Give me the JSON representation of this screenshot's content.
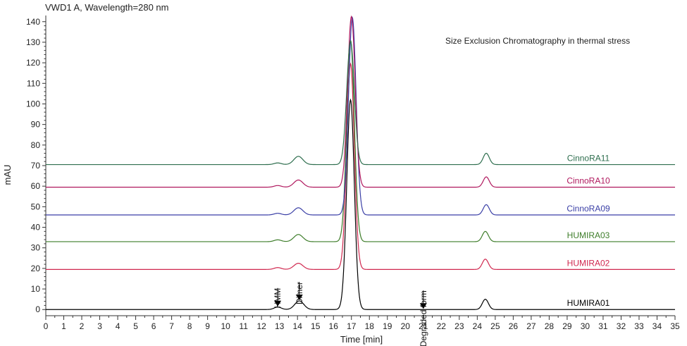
{
  "chart_data": {
    "type": "line",
    "header": "VWD1 A, Wavelength=280 nm",
    "title": "Size Exclusion Chromatography in thermal stress",
    "xlabel": "Time [min]",
    "ylabel": "mAU",
    "xlim": [
      0,
      35
    ],
    "ylim": [
      -3,
      143
    ],
    "xticks": [
      0,
      1,
      2,
      3,
      4,
      5,
      6,
      7,
      8,
      9,
      10,
      11,
      12,
      13,
      14,
      15,
      16,
      17,
      18,
      19,
      20,
      21,
      22,
      23,
      24,
      25,
      26,
      27,
      28,
      29,
      30,
      31,
      32,
      33,
      34,
      35
    ],
    "yticks": [
      0,
      10,
      20,
      30,
      40,
      50,
      60,
      70,
      80,
      90,
      100,
      110,
      120,
      130,
      140
    ],
    "grid": false,
    "legend": "inline-right",
    "series": [
      {
        "name": "HUMIRA01",
        "color": "#000000",
        "baseline": 0,
        "peaks": [
          {
            "x": 12.9,
            "h": 1.2,
            "w": 0.2
          },
          {
            "x": 14.1,
            "h": 4.2,
            "w": 0.25
          },
          {
            "x": 16.95,
            "h": 102,
            "w": 0.21
          },
          {
            "x": 24.45,
            "h": 5,
            "w": 0.17
          }
        ]
      },
      {
        "name": "HUMIRA02",
        "color": "#d0284f",
        "baseline": 19.5,
        "peaks": [
          {
            "x": 12.9,
            "h": 0.9,
            "w": 0.2
          },
          {
            "x": 14.05,
            "h": 3,
            "w": 0.25
          },
          {
            "x": 16.95,
            "h": 100,
            "w": 0.21
          },
          {
            "x": 24.45,
            "h": 5,
            "w": 0.17
          }
        ]
      },
      {
        "name": "HUMIRA03",
        "color": "#3e7d2a",
        "baseline": 33,
        "peaks": [
          {
            "x": 12.9,
            "h": 0.9,
            "w": 0.2
          },
          {
            "x": 14.05,
            "h": 3.5,
            "w": 0.25
          },
          {
            "x": 16.95,
            "h": 98,
            "w": 0.21
          },
          {
            "x": 24.45,
            "h": 5,
            "w": 0.17
          }
        ]
      },
      {
        "name": "CinnoRA09",
        "color": "#3a3fa6",
        "baseline": 46,
        "peaks": [
          {
            "x": 12.9,
            "h": 0.8,
            "w": 0.2
          },
          {
            "x": 14.05,
            "h": 3.5,
            "w": 0.25
          },
          {
            "x": 17.05,
            "h": 96,
            "w": 0.21
          },
          {
            "x": 24.5,
            "h": 5,
            "w": 0.17
          }
        ]
      },
      {
        "name": "CinnoRA10",
        "color": "#b0185e",
        "baseline": 59.5,
        "peaks": [
          {
            "x": 12.9,
            "h": 0.8,
            "w": 0.2
          },
          {
            "x": 14.05,
            "h": 3.5,
            "w": 0.25
          },
          {
            "x": 17.0,
            "h": 83,
            "w": 0.21
          },
          {
            "x": 24.5,
            "h": 5,
            "w": 0.17
          }
        ]
      },
      {
        "name": "CinnoRA11",
        "color": "#2e6e4e",
        "baseline": 70.5,
        "peaks": [
          {
            "x": 12.9,
            "h": 0.8,
            "w": 0.2
          },
          {
            "x": 14.05,
            "h": 4,
            "w": 0.25
          },
          {
            "x": 16.95,
            "h": 60,
            "w": 0.21
          },
          {
            "x": 24.5,
            "h": 5.5,
            "w": 0.17
          }
        ]
      }
    ],
    "annotations": [
      {
        "label": "HMM",
        "x": 12.9,
        "y": 1.2
      },
      {
        "label": "Dimer",
        "x": 14.1,
        "y": 4.2
      },
      {
        "label": "Degraded form",
        "x": 21.0,
        "y": 0
      }
    ]
  }
}
